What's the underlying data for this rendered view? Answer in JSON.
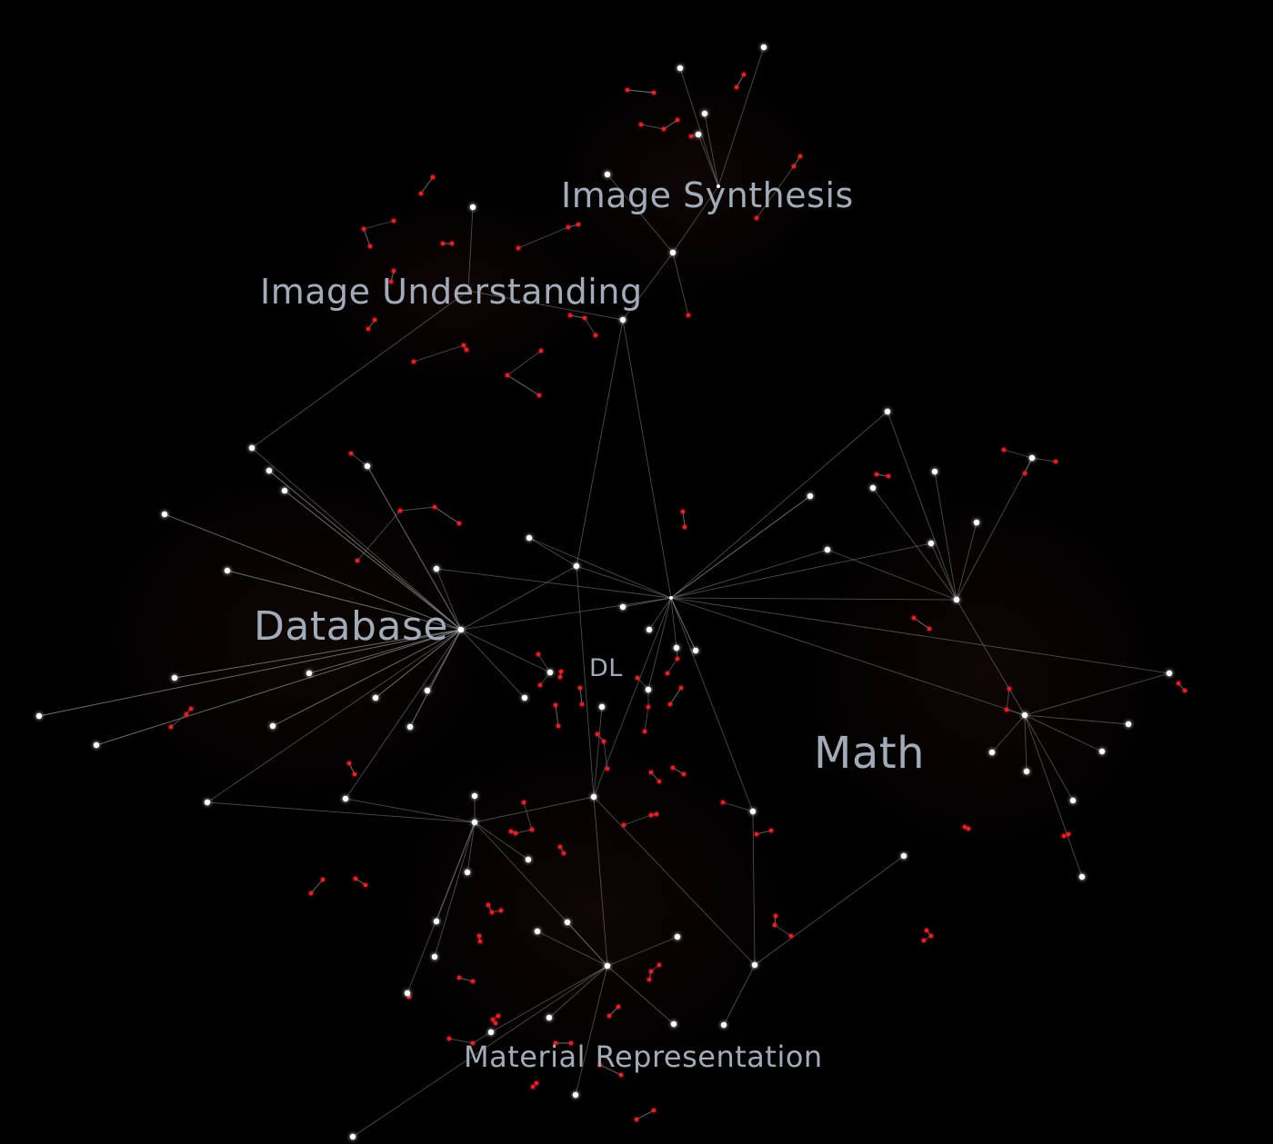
{
  "graph": {
    "background": "#000000",
    "edge_color": "#8a8a8a",
    "primary_node_color": "#ffffff",
    "leaf_node_color": "#e0242a",
    "label_color": "#a3abb9",
    "clusters": [
      {
        "id": "image-synthesis",
        "label": "Image Synthesis"
      },
      {
        "id": "image-understanding",
        "label": "Image Understanding"
      },
      {
        "id": "database",
        "label": "Database"
      },
      {
        "id": "dl",
        "label": "DL"
      },
      {
        "id": "math",
        "label": "Math"
      },
      {
        "id": "material-representation",
        "label": "Material Representation"
      }
    ]
  }
}
